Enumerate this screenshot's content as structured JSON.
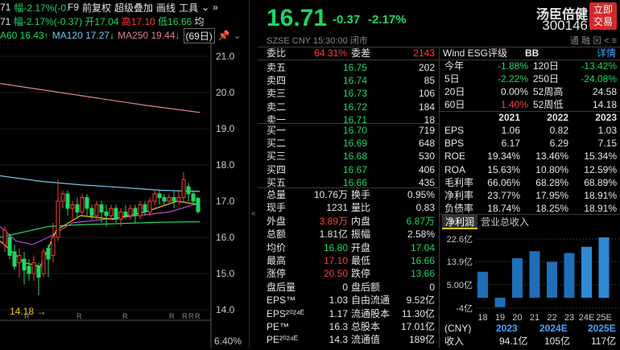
{
  "chart": {
    "top": {
      "f9": "F9",
      "adj": "前复权",
      "overlay": "超级叠加",
      "draw": "画线",
      "tools": "工具",
      "t1": "71",
      "t2": "幅-2.17%(-0.37)",
      "t3": "开17.04",
      "t4": "高17.10",
      "t5": "低16.66",
      "t6": "均"
    },
    "ma": {
      "ma60": "A60 16.43↑",
      "ma120": "MA120 17.27↓",
      "ma250": "MA250 19.44↓",
      "period": "(69日)"
    },
    "ylabels": [
      "21.0",
      "20.0",
      "19.0",
      "18.0",
      "17.0",
      "16.0",
      "15.0",
      "14.0"
    ],
    "minlabel": "14.18",
    "xmarks": [
      "R",
      "R",
      "R",
      "R",
      "R",
      "R",
      "R"
    ],
    "pct": "6.40%"
  },
  "quote": {
    "price": "16.71",
    "chg": "-0.37",
    "chgpct": "-2.17%",
    "name": "汤臣倍健",
    "code": "300146",
    "tradebtn1": "立即",
    "tradebtn2": "交易",
    "sub": "SZSE  CNY  15:30:00  闭市",
    "icons": "通  融  ⊠  <  ≡",
    "weibi": {
      "l": "委比",
      "v": "64.31%",
      "l2": "委差",
      "v2": "2143"
    },
    "sells": [
      [
        "卖五",
        "16.75",
        "202"
      ],
      [
        "卖四",
        "16.74",
        "85"
      ],
      [
        "卖三",
        "16.73",
        "106"
      ],
      [
        "卖二",
        "16.72",
        "184"
      ],
      [
        "卖一",
        "16.71",
        "18"
      ]
    ],
    "buys": [
      [
        "买一",
        "16.70",
        "719"
      ],
      [
        "买二",
        "16.69",
        "648"
      ],
      [
        "买三",
        "16.68",
        "530"
      ],
      [
        "买四",
        "16.67",
        "406"
      ],
      [
        "买五",
        "16.66",
        "435"
      ]
    ],
    "stats": [
      [
        "总量",
        "10.76万",
        "wt",
        "换手",
        "0.95%",
        "wt"
      ],
      [
        "现手",
        "1231",
        "wt",
        "量比",
        "0.83",
        "wt"
      ],
      [
        "外盘",
        "3.89万",
        "up",
        "内盘",
        "6.87万",
        "dn"
      ],
      [
        "总额",
        "1.81亿",
        "wt",
        "振幅",
        "2.58%",
        "wt"
      ],
      [
        "均价",
        "16.80",
        "dn",
        "开盘",
        "17.04",
        "dn"
      ],
      [
        "最高",
        "17.10",
        "up",
        "最低",
        "16.66",
        "dn"
      ],
      [
        "涨停",
        "20.50",
        "up",
        "跌停",
        "13.66",
        "dn"
      ],
      [
        "盘后量",
        "0",
        "wt",
        "盘后额",
        "0",
        "wt"
      ],
      [
        "EPS™",
        "1.03",
        "wt",
        "自由流通",
        "9.52亿",
        "wt"
      ],
      [
        "EPS²⁰²⁴ᴱ",
        "1.17",
        "wt",
        "流通股本",
        "11.30亿",
        "wt"
      ],
      [
        "PE™",
        "16.3",
        "wt",
        "总股本",
        "17.01亿",
        "wt"
      ],
      [
        "PE²⁰²⁴ᴱ",
        "14.3",
        "wt",
        "流通值",
        "189亿",
        "wt"
      ]
    ],
    "esg": {
      "label": "Wind ESG评级",
      "grade": "BB",
      "detail": "详情"
    },
    "perf": [
      [
        "今年",
        "-1.88%",
        "dn",
        "120日",
        "-13.42%",
        "dn"
      ],
      [
        "5日",
        "-2.22%",
        "dn",
        "250日",
        "-24.08%",
        "dn"
      ],
      [
        "20日",
        "0.00%",
        "wt",
        "52周高",
        "24.58",
        "wt"
      ],
      [
        "60日",
        "1.40%",
        "up",
        "52周低",
        "14.18",
        "wt"
      ]
    ],
    "years": [
      "2021",
      "2022",
      "2023"
    ],
    "fin": [
      [
        "EPS",
        "1.06",
        "0.82",
        "1.03"
      ],
      [
        "BPS",
        "6.17",
        "6.29",
        "7.15"
      ],
      [
        "ROE",
        "19.34%",
        "13.46%",
        "15.34%"
      ],
      [
        "ROA",
        "15.63%",
        "10.80%",
        "12.59%"
      ],
      [
        "毛利率",
        "66.06%",
        "68.28%",
        "68.89%"
      ],
      [
        "净利率",
        "23.77%",
        "17.95%",
        "18.91%"
      ],
      [
        "负债率",
        "18.74%",
        "18.25%",
        "18.91%"
      ]
    ],
    "tabs": [
      "净利润",
      "营业总收入"
    ],
    "bar_axis": [
      "22.6亿",
      "13.9亿",
      "5.00亿",
      "-4亿"
    ],
    "bar_x": [
      "18",
      "19",
      "20",
      "21",
      "22",
      "23",
      "24E",
      "25E"
    ],
    "cny": "(CNY)",
    "fy": [
      "2023",
      "2024E",
      "2025E"
    ],
    "income": {
      "label": "收入",
      "v": [
        "94.1亿",
        "105亿",
        "117亿"
      ]
    }
  },
  "chart_data": {
    "type": "bar",
    "categories": [
      "18",
      "19",
      "20",
      "21",
      "22",
      "23",
      "24E",
      "25E"
    ],
    "values": [
      10,
      -3.6,
      15.2,
      17.9,
      13.8,
      17.2,
      19.6,
      23.2
    ],
    "ylim": [
      -4,
      22.6
    ]
  }
}
